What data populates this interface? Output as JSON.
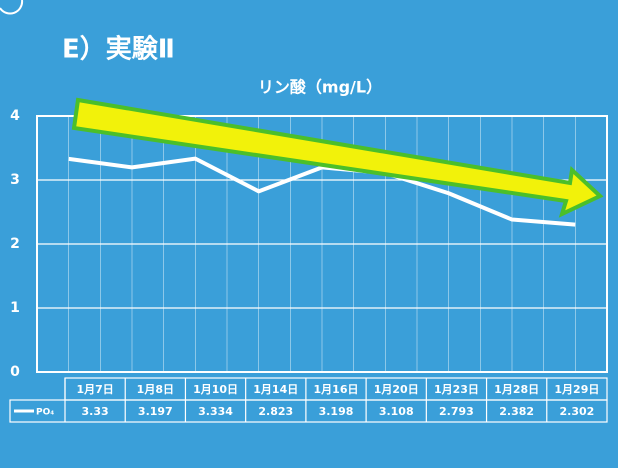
{
  "chart_data": {
    "type": "line",
    "title": "E）実験Ⅱ",
    "subtitle": "リン酸（mg/L）",
    "categories": [
      "1月7日",
      "1月8日",
      "1月10日",
      "1月14日",
      "1月16日",
      "1月20日",
      "1月23日",
      "1月28日",
      "1月29日"
    ],
    "series": [
      {
        "name": "PO₄",
        "color": "#ffffff",
        "values": [
          3.33,
          3.197,
          3.334,
          2.823,
          3.198,
          3.108,
          2.793,
          2.382,
          2.302
        ]
      }
    ],
    "ylim": [
      0,
      4
    ],
    "yticks": [
      0,
      1,
      2,
      3,
      4
    ],
    "grid": true
  }
}
